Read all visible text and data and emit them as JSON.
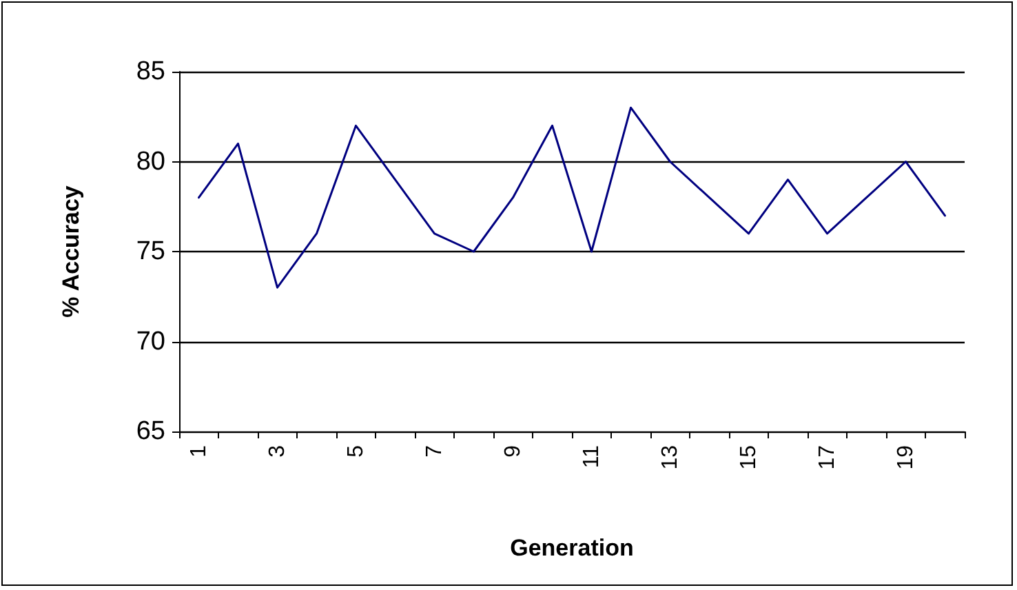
{
  "chart_data": {
    "type": "line",
    "xlabel": "Generation",
    "ylabel": "% Accuracy",
    "categories": [
      "1",
      null,
      "3",
      null,
      "5",
      null,
      "7",
      null,
      "9",
      null,
      "11",
      null,
      "13",
      null,
      "15",
      null,
      "17",
      null,
      "19",
      null
    ],
    "series": [
      {
        "color": "#000080",
        "values": [
          78,
          81,
          73,
          76,
          82,
          79,
          76,
          75,
          78,
          82,
          75,
          83,
          80,
          78,
          76,
          79,
          76,
          78,
          80,
          77
        ]
      }
    ],
    "ylim": [
      65,
      85
    ],
    "yticks": [
      65,
      70,
      75,
      80,
      85
    ],
    "grid": "y",
    "marker": "none",
    "line_style": "solid"
  }
}
